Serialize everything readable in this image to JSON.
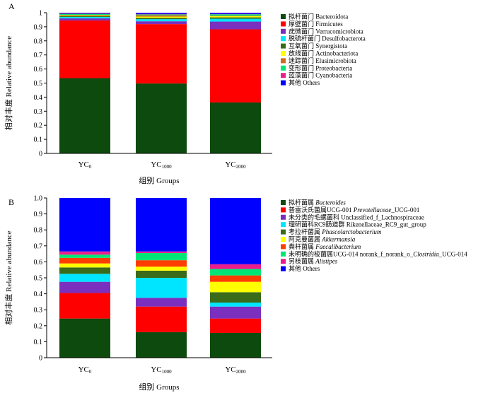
{
  "chart_data": [
    {
      "panel": "A",
      "type": "bar",
      "stacked": true,
      "categories": [
        "YC0",
        "YC1000",
        "YC2000"
      ],
      "category_display": [
        {
          "main": "YC",
          "sub": "0"
        },
        {
          "main": "YC",
          "sub": "1000"
        },
        {
          "main": "YC",
          "sub": "2000"
        }
      ],
      "ylim": [
        0,
        1
      ],
      "yticks": [
        "0",
        "0.1",
        "0.2",
        "0.3",
        "0.4",
        "0.5",
        "0.6",
        "0.7",
        "0.8",
        "0.9",
        "1"
      ],
      "ylabel": "相对丰度 Relative abundance",
      "xlabel": "组别 Groups",
      "legend_position": "right",
      "series": [
        {
          "name": "拟杆菌门 Bacteroidota",
          "color": "#0d4a0d",
          "values": [
            0.535,
            0.497,
            0.362
          ]
        },
        {
          "name": "厚壁菌门 Firmicutes",
          "color": "#ff0000",
          "values": [
            0.41,
            0.422,
            0.52
          ]
        },
        {
          "name": "疣微菌门 Verrucomicrobiota",
          "color": "#7b2fbe",
          "values": [
            0.015,
            0.02,
            0.055
          ]
        },
        {
          "name": "脱硫杆菌门 Desulfobacterota",
          "color": "#00e5ff",
          "values": [
            0.01,
            0.015,
            0.02
          ]
        },
        {
          "name": "互氧菌门 Synergistota",
          "color": "#3a6b1a",
          "values": [
            0.008,
            0.01,
            0.01
          ]
        },
        {
          "name": "放线菌门 Actinobacteriota",
          "color": "#ffff00",
          "values": [
            0.004,
            0.008,
            0.008
          ]
        },
        {
          "name": "迷踪菌门 Elusimicrobiota",
          "color": "#d2691e",
          "values": [
            0.003,
            0.01,
            0.004
          ]
        },
        {
          "name": "变形菌门 Proteobacteria",
          "color": "#00e676",
          "values": [
            0.007,
            0.006,
            0.01
          ]
        },
        {
          "name": "蓝藻菌门 Cyanobacteria",
          "color": "#e91e8c",
          "values": [
            0.003,
            0.004,
            0.003
          ]
        },
        {
          "name": "其他 Others",
          "color": "#0000ff",
          "values": [
            0.005,
            0.008,
            0.008
          ]
        }
      ]
    },
    {
      "panel": "B",
      "type": "bar",
      "stacked": true,
      "categories": [
        "YC0",
        "YC1000",
        "YC2000"
      ],
      "category_display": [
        {
          "main": "YC",
          "sub": "0"
        },
        {
          "main": "YC",
          "sub": "1000"
        },
        {
          "main": "YC",
          "sub": "2000"
        }
      ],
      "ylim": [
        0,
        1
      ],
      "yticks": [
        "0",
        "0.1",
        "0.2",
        "0.3",
        "0.4",
        "0.5",
        "0.6",
        "0.7",
        "0.8",
        "0.9",
        "1.0"
      ],
      "ylabel": "相对丰度 Relative abundance",
      "xlabel": "组别 Groups",
      "legend_position": "right",
      "series": [
        {
          "name": "拟杆菌属 Bacteroides",
          "parts": [
            {
              "t": "拟杆菌属 "
            },
            {
              "t": "Bacteroides",
              "i": true
            }
          ],
          "color": "#0d4a0d",
          "values": [
            0.245,
            0.16,
            0.155
          ]
        },
        {
          "name": "普雷沃氏菌属UCG-001 Prevotellaceae_UCG-001",
          "parts": [
            {
              "t": "普雷沃氏菌属UCG-001 "
            },
            {
              "t": "Prevotellaceae",
              "i": true
            },
            {
              "t": "_UCG-001"
            }
          ],
          "color": "#ff0000",
          "values": [
            0.16,
            0.16,
            0.09
          ]
        },
        {
          "name": "未分类的毛螺菌科 Unclassified_f_Lachnospiraceae",
          "parts": [
            {
              "t": "未分类的毛螺菌科 Unclassified_f_Lachnospiraceae"
            }
          ],
          "color": "#7b2fbe",
          "values": [
            0.07,
            0.055,
            0.075
          ]
        },
        {
          "name": "理研菌科RC9肠道群 Rikenellaceae_RC9_gut_group",
          "parts": [
            {
              "t": "理研菌科RC9肠道群 Rikenellaceae_RC9_gut_group"
            }
          ],
          "color": "#00e5ff",
          "values": [
            0.05,
            0.125,
            0.025
          ]
        },
        {
          "name": "考拉杆菌属 Phascolarctobacterium",
          "parts": [
            {
              "t": "考拉杆菌属 "
            },
            {
              "t": "Phascolarctobacterium",
              "i": true
            }
          ],
          "color": "#3a6b1a",
          "values": [
            0.04,
            0.045,
            0.065
          ]
        },
        {
          "name": "阿克曼菌属 Akkermansia",
          "parts": [
            {
              "t": "阿克曼菌属 "
            },
            {
              "t": "Akkermansia",
              "i": true
            }
          ],
          "color": "#ffff00",
          "values": [
            0.025,
            0.025,
            0.065
          ]
        },
        {
          "name": "粪杆菌属 Faecalibacterium",
          "parts": [
            {
              "t": "粪杆菌属 "
            },
            {
              "t": "Faecalibacterium",
              "i": true
            }
          ],
          "color": "#ff3d00",
          "values": [
            0.035,
            0.04,
            0.04
          ]
        },
        {
          "name": "未明确的梭菌属UCG-014 norank_f_norank_o_Clostridia_UCG-014",
          "parts": [
            {
              "t": "未明确的梭菌属UCG-014 norank_f_norank_o_"
            },
            {
              "t": "Clostridia",
              "i": true
            },
            {
              "t": "_UCG-014"
            }
          ],
          "color": "#00e676",
          "values": [
            0.02,
            0.045,
            0.04
          ]
        },
        {
          "name": "另枝菌属 Alistipes",
          "parts": [
            {
              "t": "另枝菌属 "
            },
            {
              "t": "Alistipes",
              "i": true
            }
          ],
          "color": "#e91e8c",
          "values": [
            0.02,
            0.01,
            0.03
          ]
        },
        {
          "name": "其他 Others",
          "parts": [
            {
              "t": "其他 Others"
            }
          ],
          "color": "#0000ff",
          "values": [
            0.335,
            0.335,
            0.415
          ]
        }
      ]
    }
  ]
}
